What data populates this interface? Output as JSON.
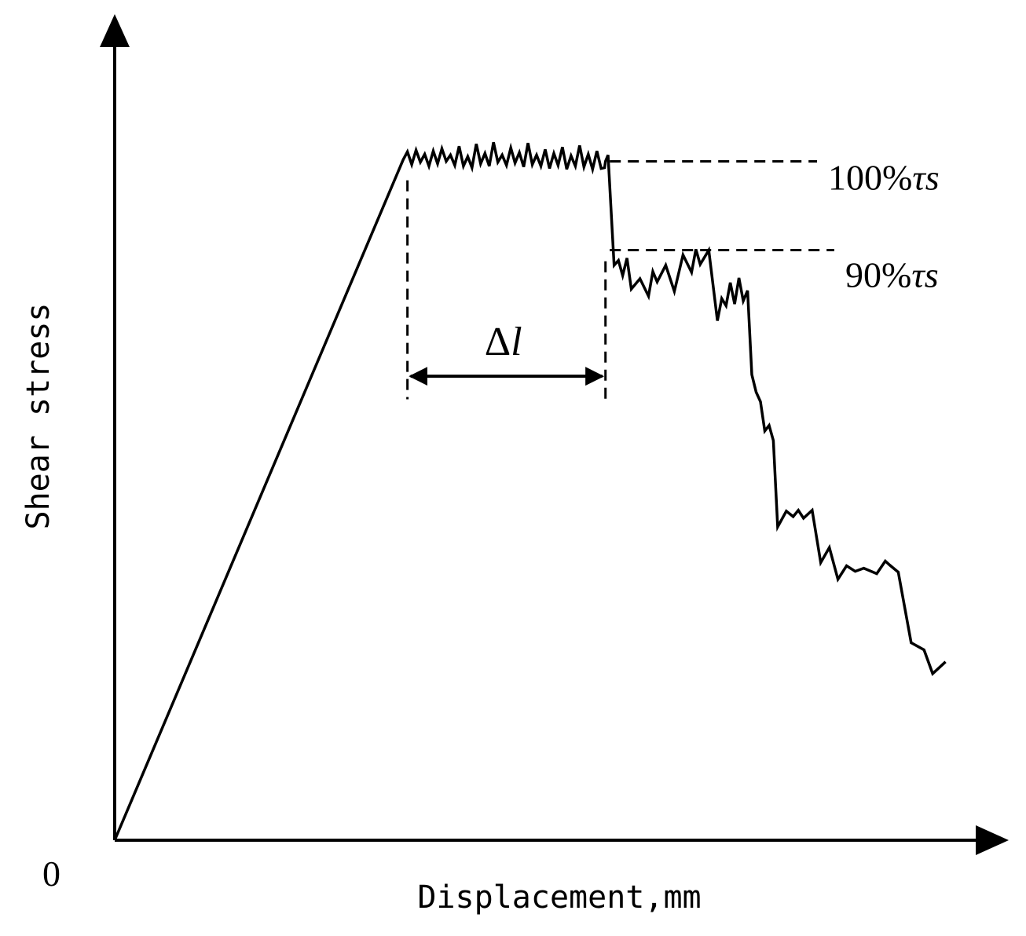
{
  "chart_data": {
    "type": "line",
    "title": "",
    "xlabel": "Displacement,mm",
    "ylabel": "Shear stress",
    "origin_label": "0",
    "xlim": [
      0,
      100
    ],
    "ylim": [
      0,
      100
    ],
    "grid": false,
    "legend": "none",
    "colors": {
      "line": "#000000",
      "background": "#ffffff"
    },
    "series": [
      {
        "x": [
          0,
          33.5,
          34.0,
          34.5,
          35.0,
          35.5,
          36.0,
          36.5,
          37.0,
          37.5,
          38.0,
          38.5,
          39.0,
          39.5,
          40.0,
          40.5,
          41.0,
          41.5,
          42.0,
          42.5,
          43.0,
          43.5,
          44.0,
          44.5,
          45.0,
          45.5,
          46.0,
          46.5,
          47.0,
          47.5,
          48.0,
          48.5,
          49.0,
          49.5,
          50.0,
          50.5,
          51.0,
          51.5,
          52.0,
          52.5,
          53.0,
          53.5,
          54.0,
          54.5,
          55.0,
          55.5,
          56.0,
          56.5,
          56.9,
          57.0,
          57.3,
          58.0,
          58.5,
          59.0,
          59.5,
          60.0,
          61.0,
          62.0,
          62.5,
          63.0,
          64.0,
          65.0,
          66.0,
          67.0,
          67.5,
          68.0,
          69.0,
          70.0,
          70.5,
          71.0,
          71.5,
          72.0,
          72.5,
          73.0,
          73.5,
          74.0,
          74.5,
          75.0,
          75.5,
          76.0,
          76.5,
          77.0,
          78.0,
          78.8,
          79.4,
          80.0,
          81.0,
          82.0,
          83.0,
          84.0,
          85.0,
          86.0,
          87.0,
          88.5,
          89.5,
          90.0,
          91.0,
          92.5,
          94.0,
          95.0,
          96.5
        ],
        "y": [
          0,
          85.8,
          86.8,
          85.2,
          87.0,
          85.5,
          86.5,
          85.0,
          86.9,
          85.3,
          87.2,
          85.6,
          86.4,
          85.1,
          87.5,
          85.0,
          86.2,
          84.8,
          87.8,
          85.3,
          86.6,
          85.0,
          88.0,
          85.5,
          86.4,
          85.1,
          87.3,
          85.4,
          86.7,
          84.9,
          87.9,
          85.2,
          86.4,
          85.0,
          87.1,
          84.7,
          86.6,
          85.1,
          87.4,
          84.6,
          86.3,
          85.0,
          87.6,
          84.9,
          86.5,
          84.6,
          86.9,
          84.7,
          84.8,
          85.6,
          86.4,
          72.5,
          73.1,
          71.2,
          73.4,
          69.5,
          70.8,
          68.6,
          71.7,
          70.4,
          72.5,
          69.2,
          73.8,
          71.6,
          74.5,
          72.6,
          74.4,
          65.5,
          68.3,
          67.4,
          70.3,
          67.6,
          70.9,
          68.0,
          69.3,
          58.7,
          56.5,
          55.3,
          51.6,
          52.3,
          50.4,
          39.5,
          41.5,
          40.8,
          41.6,
          40.6,
          41.6,
          35.0,
          36.9,
          32.9,
          34.6,
          33.9,
          34.3,
          33.6,
          35.2,
          34.7,
          33.8,
          24.9,
          24.0,
          21.0,
          22.5
        ]
      }
    ],
    "annotations": [
      {
        "text": "100%",
        "symbol": "τs",
        "y": 85.6
      },
      {
        "text": "90%",
        "symbol": "τs",
        "y": 74.4
      },
      {
        "text": "Δ",
        "symbol": "l",
        "x_start": 34.0,
        "x_end": 57.0
      }
    ]
  }
}
